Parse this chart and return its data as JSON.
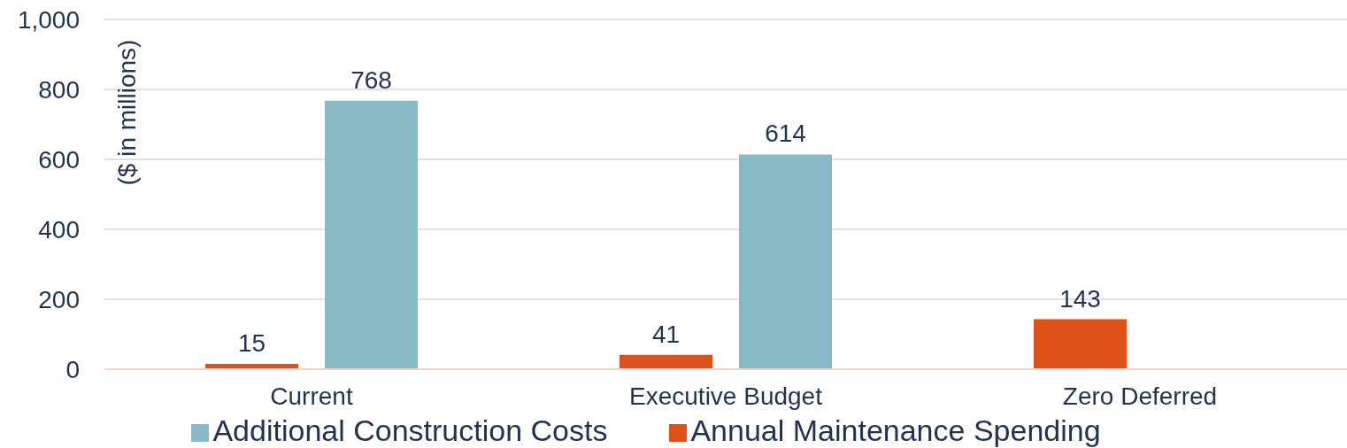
{
  "chart_data": {
    "type": "bar",
    "ylabel": "($ in millions)",
    "categories": [
      "Current",
      "Executive Budget",
      "Zero Deferred"
    ],
    "series": [
      {
        "name": "Annual Maintenance Spending",
        "color": "#dd5016",
        "values": [
          15,
          41,
          143
        ]
      },
      {
        "name": "Additional Construction Costs",
        "color": "#88b9c7",
        "values": [
          768,
          614,
          null
        ]
      }
    ],
    "ylim": [
      0,
      1000
    ],
    "yticks": [
      0,
      200,
      400,
      600,
      800,
      {
        "value": 1000,
        "label": "1,000"
      }
    ],
    "grid": "y",
    "legend": "bottom",
    "data_labels": true
  }
}
